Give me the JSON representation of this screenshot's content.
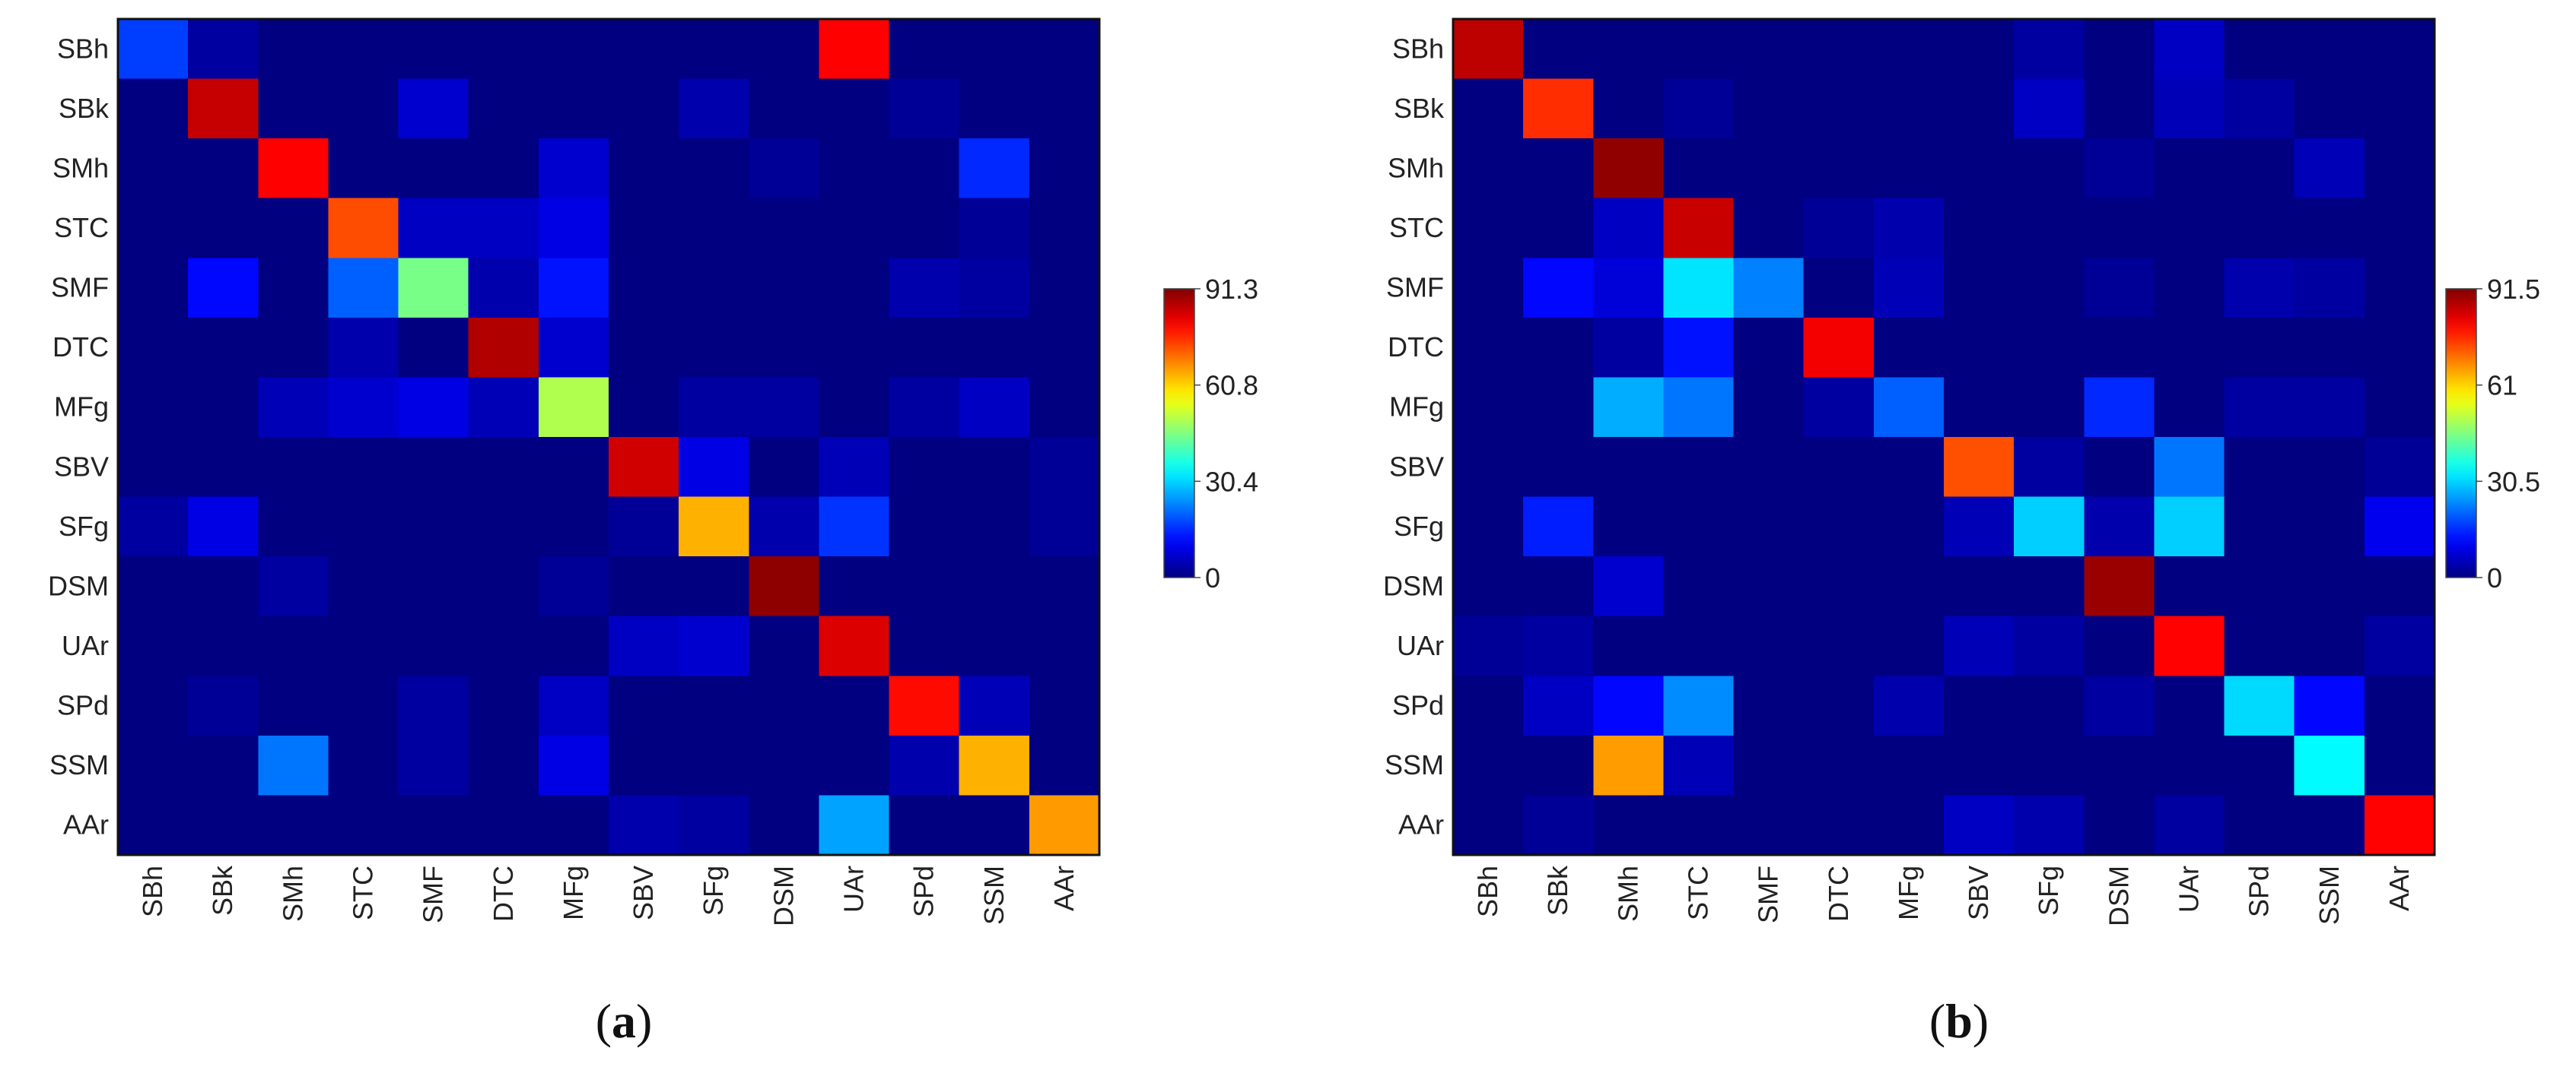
{
  "chart_data": [
    {
      "type": "heatmap",
      "panel_label": "a",
      "caption_open": "(",
      "caption_close": ")",
      "row_labels": [
        "SBh",
        "SBk",
        "SMh",
        "STC",
        "SMF",
        "DTC",
        "MFg",
        "SBV",
        "SFg",
        "DSM",
        "UAr",
        "SPd",
        "SSM",
        "AAr"
      ],
      "col_labels": [
        "SBh",
        "SBk",
        "SMh",
        "STC",
        "SMF",
        "DTC",
        "MFg",
        "SBV",
        "SFg",
        "DSM",
        "UAr",
        "SPd",
        "SSM",
        "AAr"
      ],
      "colorbar": {
        "min": 0,
        "max": 91.3,
        "ticks": [
          "91.3",
          "60.8",
          "30.4",
          "0"
        ],
        "colormap": "jet"
      },
      "values": [
        [
          17,
          3,
          0,
          0,
          0,
          0,
          0,
          0,
          0,
          0,
          80,
          0,
          0,
          0
        ],
        [
          0,
          85,
          0,
          0,
          7,
          0,
          0,
          0,
          4,
          0,
          0,
          2,
          0,
          0
        ],
        [
          0,
          0,
          80,
          0,
          0,
          0,
          7,
          0,
          0,
          2,
          0,
          0,
          15,
          0
        ],
        [
          0,
          0,
          0,
          73,
          6,
          6,
          9,
          0,
          0,
          0,
          0,
          0,
          2,
          0
        ],
        [
          0,
          12,
          0,
          20,
          45,
          4,
          13,
          0,
          0,
          0,
          0,
          4,
          3,
          0
        ],
        [
          0,
          0,
          0,
          4,
          0,
          87,
          7,
          0,
          0,
          0,
          0,
          0,
          0,
          0
        ],
        [
          0,
          0,
          5,
          7,
          9,
          5,
          50,
          0,
          3,
          3,
          0,
          3,
          6,
          0
        ],
        [
          0,
          0,
          0,
          0,
          0,
          0,
          0,
          84,
          9,
          0,
          5,
          0,
          0,
          2
        ],
        [
          3,
          9,
          0,
          0,
          0,
          0,
          0,
          2,
          64,
          4,
          16,
          0,
          0,
          2
        ],
        [
          0,
          0,
          3,
          0,
          0,
          0,
          2,
          0,
          0,
          90,
          0,
          0,
          0,
          0
        ],
        [
          0,
          0,
          0,
          0,
          0,
          0,
          0,
          6,
          7,
          0,
          83,
          0,
          0,
          0
        ],
        [
          0,
          2,
          0,
          0,
          3,
          0,
          6,
          0,
          0,
          0,
          0,
          79,
          5,
          0
        ],
        [
          0,
          0,
          22,
          0,
          3,
          0,
          9,
          0,
          0,
          0,
          0,
          4,
          64,
          0
        ],
        [
          0,
          0,
          0,
          0,
          0,
          0,
          0,
          4,
          3,
          0,
          26,
          0,
          0,
          66
        ]
      ]
    },
    {
      "type": "heatmap",
      "panel_label": "b",
      "caption_open": "(",
      "caption_close": ")",
      "row_labels": [
        "SBh",
        "SBk",
        "SMh",
        "STC",
        "SMF",
        "DTC",
        "MFg",
        "SBV",
        "SFg",
        "DSM",
        "UAr",
        "SPd",
        "SSM",
        "AAr"
      ],
      "col_labels": [
        "SBh",
        "SBk",
        "SMh",
        "STC",
        "SMF",
        "DTC",
        "MFg",
        "SBV",
        "SFg",
        "DSM",
        "UAr",
        "SPd",
        "SSM",
        "AAr"
      ],
      "colorbar": {
        "min": 0,
        "max": 91.5,
        "ticks": [
          "91.5",
          "61",
          "30.5",
          "0"
        ],
        "colormap": "jet"
      },
      "values": [
        [
          86,
          0,
          0,
          0,
          0,
          0,
          0,
          0,
          3,
          0,
          6,
          0,
          0,
          0
        ],
        [
          0,
          76,
          0,
          2,
          0,
          0,
          0,
          0,
          6,
          0,
          5,
          3,
          0,
          0
        ],
        [
          0,
          0,
          90,
          0,
          0,
          0,
          0,
          0,
          0,
          2,
          0,
          0,
          5,
          0
        ],
        [
          0,
          0,
          6,
          85,
          0,
          2,
          4,
          0,
          0,
          0,
          0,
          0,
          0,
          0
        ],
        [
          0,
          12,
          8,
          32,
          23,
          0,
          5,
          0,
          0,
          2,
          0,
          4,
          3,
          0
        ],
        [
          0,
          0,
          3,
          13,
          0,
          81,
          0,
          0,
          0,
          0,
          0,
          0,
          0,
          0
        ],
        [
          0,
          0,
          27,
          22,
          0,
          3,
          20,
          0,
          0,
          15,
          0,
          3,
          3,
          0
        ],
        [
          0,
          0,
          0,
          0,
          0,
          0,
          0,
          73,
          3,
          0,
          22,
          0,
          0,
          2
        ],
        [
          0,
          14,
          0,
          0,
          0,
          0,
          0,
          5,
          30,
          4,
          30,
          0,
          0,
          10
        ],
        [
          0,
          0,
          7,
          0,
          0,
          0,
          0,
          0,
          0,
          89,
          0,
          0,
          0,
          0
        ],
        [
          2,
          3,
          0,
          0,
          0,
          0,
          0,
          5,
          3,
          0,
          80,
          0,
          0,
          3
        ],
        [
          0,
          6,
          12,
          24,
          0,
          0,
          4,
          0,
          0,
          3,
          0,
          31,
          12,
          0
        ],
        [
          0,
          0,
          66,
          5,
          0,
          0,
          0,
          0,
          0,
          0,
          0,
          0,
          34,
          0
        ],
        [
          0,
          2,
          0,
          0,
          0,
          0,
          0,
          6,
          4,
          0,
          3,
          0,
          0,
          80
        ]
      ]
    }
  ]
}
